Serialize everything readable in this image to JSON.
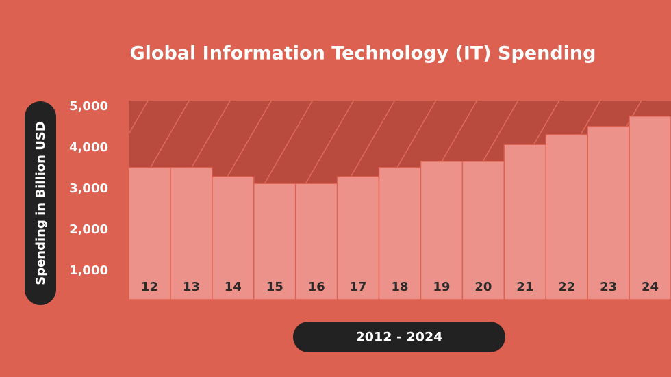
{
  "chart_data": {
    "type": "bar",
    "title": "Global Information Technology (IT) Spending",
    "y_label": "Spending in Billion USD",
    "x_label": "2012 - 2024",
    "categories": [
      "12",
      "13",
      "14",
      "15",
      "16",
      "17",
      "18",
      "19",
      "20",
      "21",
      "22",
      "23",
      "24"
    ],
    "values": [
      3520,
      3520,
      3300,
      3130,
      3130,
      3300,
      3520,
      3670,
      3670,
      4080,
      4320,
      4520,
      4770
    ],
    "color": "#ec928a",
    "ylim": [
      300,
      5150
    ],
    "yticks": [
      {
        "value": 1000,
        "label": "1,000"
      },
      {
        "value": 2000,
        "label": "2,000"
      },
      {
        "value": 3000,
        "label": "3,000"
      },
      {
        "value": 4000,
        "label": "4,000"
      },
      {
        "value": 5000,
        "label": "5,000"
      }
    ],
    "grid": false
  }
}
